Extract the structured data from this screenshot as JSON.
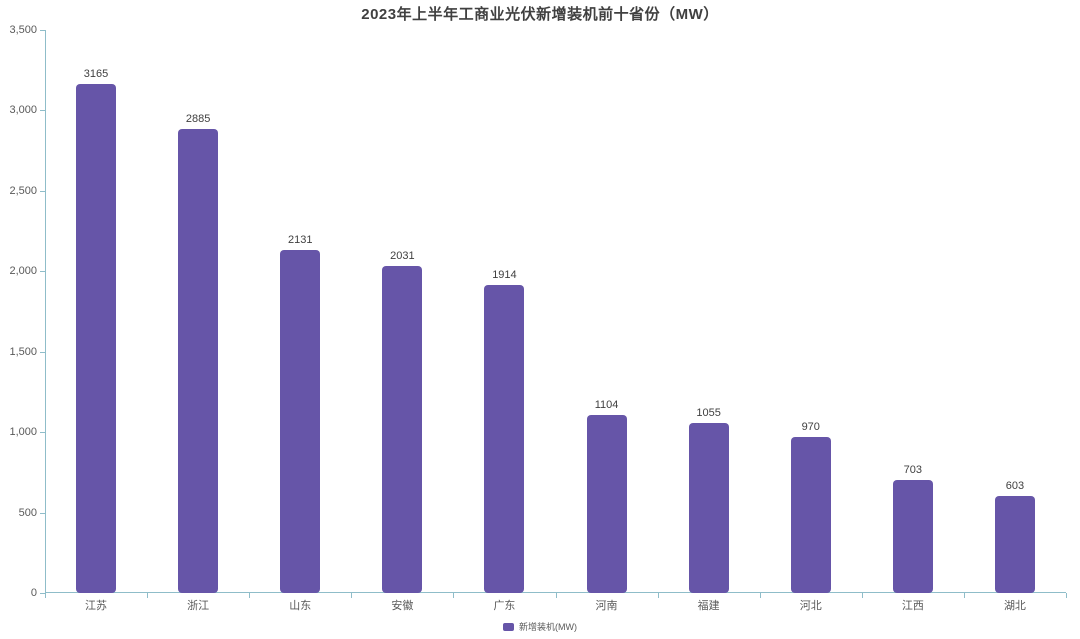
{
  "chart_data": {
    "type": "bar",
    "title": "2023年上半年工商业光伏新增装机前十省份（MW）",
    "categories": [
      "江苏",
      "浙江",
      "山东",
      "安徽",
      "广东",
      "河南",
      "福建",
      "河北",
      "江西",
      "湖北"
    ],
    "values": [
      3165,
      2885,
      2131,
      2031,
      1914,
      1104,
      1055,
      970,
      703,
      603
    ],
    "series_name": "新增装机(MW)",
    "xlabel": "",
    "ylabel": "",
    "ylim": [
      0,
      3500
    ],
    "y_tick_values": [
      0,
      500,
      1000,
      1500,
      2000,
      2500,
      3000,
      3500
    ],
    "y_tick_labels": [
      "0",
      "500",
      "1,000",
      "1,500",
      "2,000",
      "2,500",
      "3,000",
      "3,500"
    ],
    "grid": false,
    "legend_position": "bottom"
  },
  "colors": {
    "bar": "#6655a8",
    "axis": "#8fbdc9",
    "title_text": "#404040",
    "tick_text": "#595959",
    "value_text": "#404040"
  }
}
